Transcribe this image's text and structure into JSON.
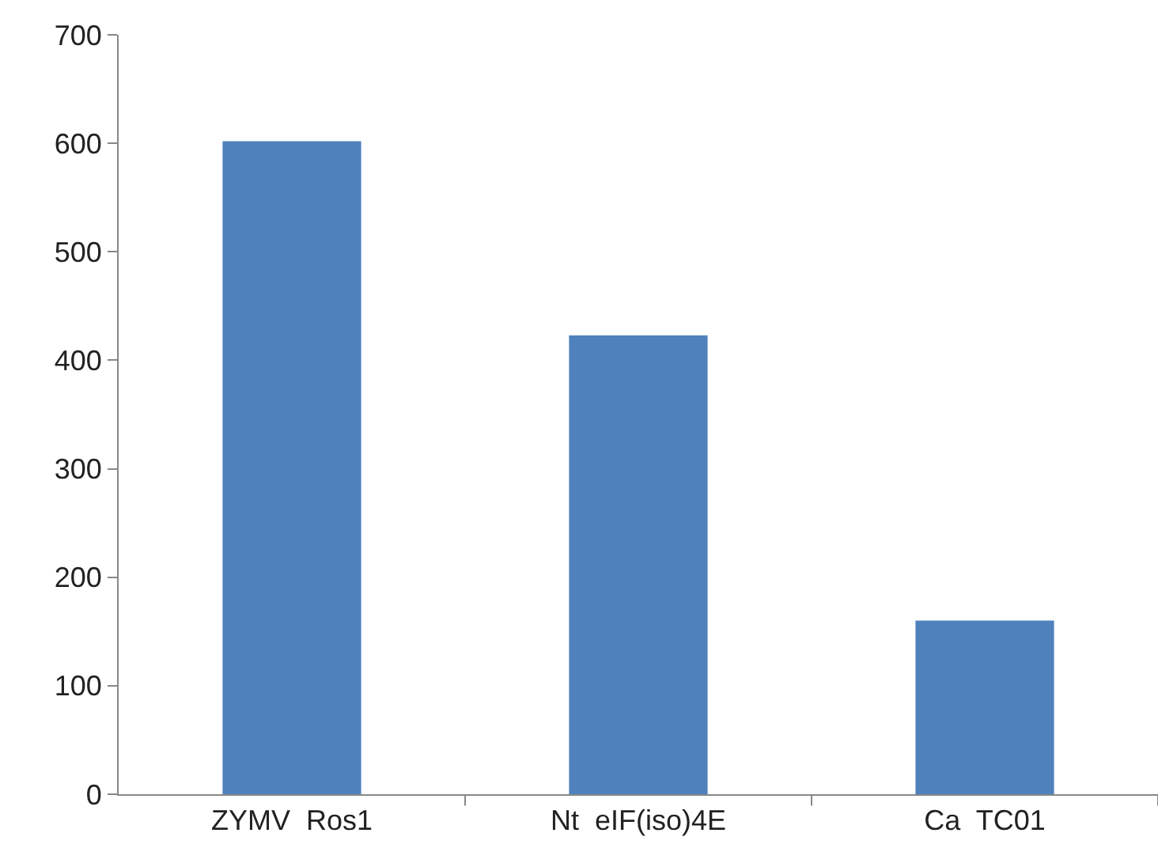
{
  "chart_data": {
    "type": "bar",
    "categories": [
      "ZYMV  Ros1",
      "Nt  eIF(iso)4E",
      "Ca  TC01"
    ],
    "values": [
      602,
      423,
      160
    ],
    "color": "#4f81bd",
    "ylim": [
      0,
      700
    ],
    "yticks": [
      0,
      100,
      200,
      300,
      400,
      500,
      600,
      700
    ],
    "grid": false
  }
}
